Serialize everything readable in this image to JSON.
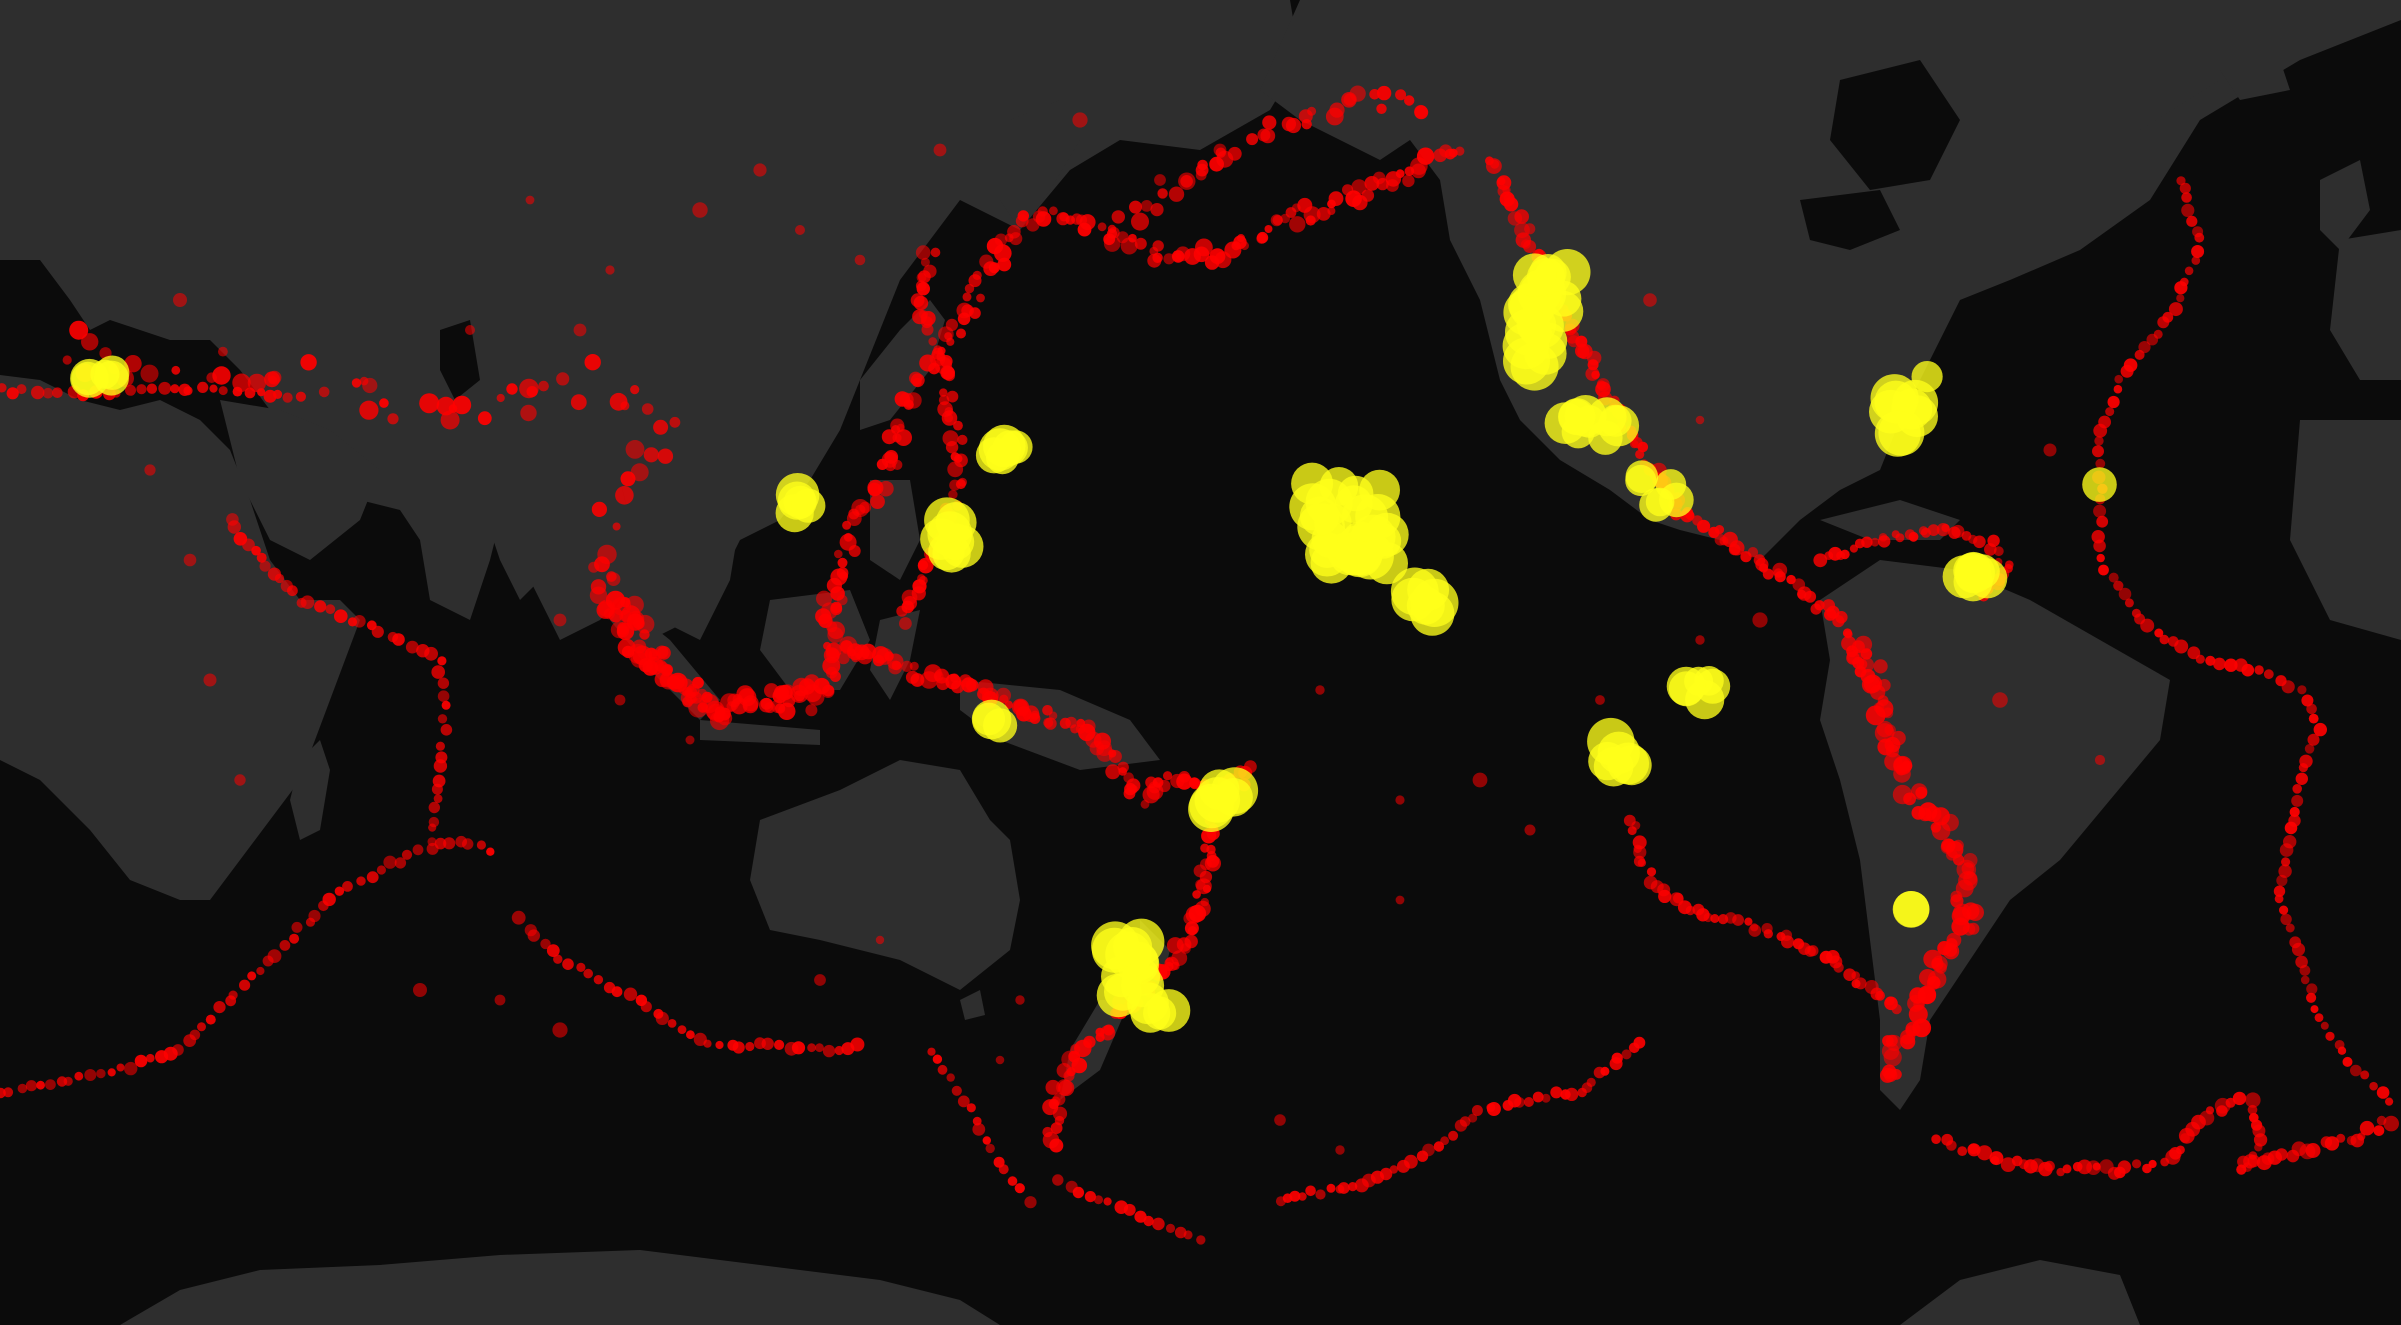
{
  "map": {
    "style": "dark-basemap",
    "colors": {
      "ocean": "#0b0b0b",
      "land": "#2e2e2e",
      "lake": "#0b0b0b",
      "earthquake": "#ff0000",
      "volcano": "#ffff1a"
    },
    "layers": [
      {
        "name": "earthquakes",
        "symbol": "red-circle",
        "visible": true
      },
      {
        "name": "volcanoes",
        "symbol": "yellow-circle",
        "visible": true
      }
    ]
  }
}
